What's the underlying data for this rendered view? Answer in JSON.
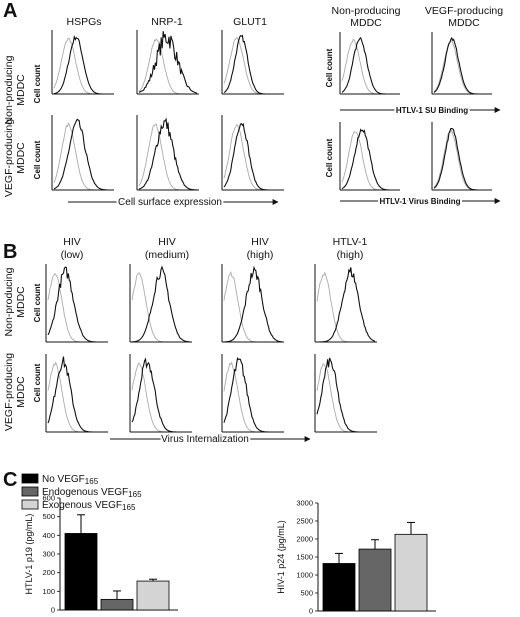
{
  "panel_a": {
    "letter": "A",
    "columns": [
      "HSPGs",
      "NRP-1",
      "GLUT1"
    ],
    "rows": [
      {
        "l1": "Non-producing",
        "l2": "MDDC"
      },
      {
        "l1": "VEGF-producing",
        "l2": "MDDC"
      }
    ],
    "right_columns": [
      {
        "l1": "Non-producing",
        "l2": "MDDC"
      },
      {
        "l1": "VEGF-producing",
        "l2": "MDDC"
      }
    ],
    "y_label": "Cell count",
    "x_label_left": "Cell surface expression",
    "x_label_su": "HTLV-1 SU Binding",
    "x_label_virus": "HTLV-1 Virus Binding"
  },
  "panel_b": {
    "letter": "B",
    "columns": [
      {
        "l1": "HIV",
        "l2": "(low)"
      },
      {
        "l1": "HIV",
        "l2": "(medium)"
      },
      {
        "l1": "HIV",
        "l2": "(high)"
      },
      {
        "l1": "HTLV-1",
        "l2": "(high)"
      }
    ],
    "rows": [
      {
        "l1": "Non-producing",
        "l2": "MDDC"
      },
      {
        "l1": "VEGF-producing",
        "l2": "MDDC"
      }
    ],
    "y_label": "Cell count",
    "x_label": "Virus Internalization"
  },
  "panel_c": {
    "letter": "C",
    "legend": [
      {
        "label": "No VEGF",
        "sub": "165",
        "color": "#000000"
      },
      {
        "label": "Endogenous VEGF",
        "sub": "165",
        "color": "#666666"
      },
      {
        "label": "Exogenous VEGF",
        "sub": "165",
        "color": "#d4d4d4"
      }
    ]
  },
  "chart_data": [
    {
      "type": "bar",
      "ylabel": "HTLV-1 p19 (pg/mL)",
      "ylim": [
        0,
        600
      ],
      "yticks": [
        "0",
        "100",
        "200",
        "300",
        "400",
        "500",
        "600"
      ],
      "series": [
        {
          "name": "No VEGF165",
          "value": 410,
          "error": 100
        },
        {
          "name": "Endogenous VEGF165",
          "value": 57,
          "error": 45
        },
        {
          "name": "Exogenous VEGF165",
          "value": 155,
          "error": 10
        }
      ]
    },
    {
      "type": "bar",
      "ylabel": "HIV-1 p24 (pg/mL)",
      "ylim": [
        0,
        3000
      ],
      "yticks": [
        "0",
        "500",
        "1000",
        "1500",
        "2000",
        "2500",
        "3000"
      ],
      "series": [
        {
          "name": "No VEGF165",
          "value": 1320,
          "error": 280
        },
        {
          "name": "Endogenous VEGF165",
          "value": 1720,
          "error": 260
        },
        {
          "name": "Exogenous VEGF165",
          "value": 2130,
          "error": 330
        }
      ]
    }
  ]
}
